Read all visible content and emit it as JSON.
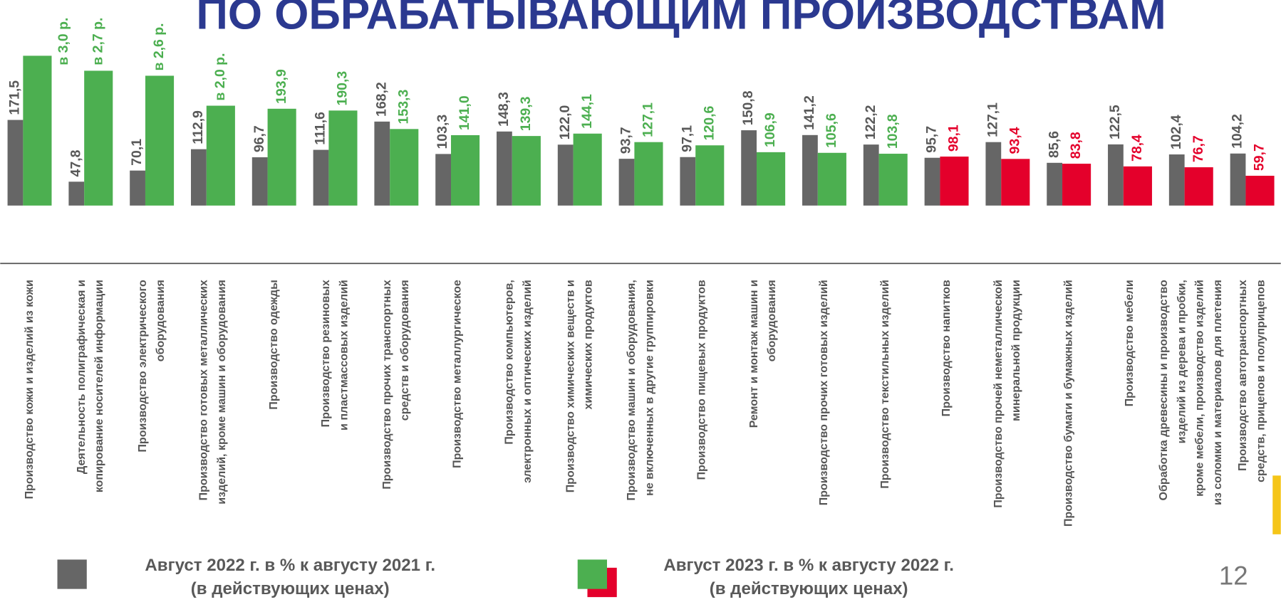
{
  "chart_data": {
    "type": "bar",
    "title": "ПО ОБРАБАТЫВАЮЩИМ ПРОИЗВОДСТВАМ",
    "page_number": "12",
    "categories": [
      [
        "Производство кожи и изделий из кожи"
      ],
      [
        "Деятельность полиграфическая и",
        "копирование носителей информации"
      ],
      [
        "Производство электрического",
        "оборудования"
      ],
      [
        "Производство готовых металлических",
        "изделий, кроме машин и оборудования"
      ],
      [
        "Производство одежды"
      ],
      [
        "Производство резиновых",
        "и пластмассовых изделий"
      ],
      [
        "Производство прочих транспортных",
        "средств и оборудования"
      ],
      [
        "Производство  металлургическое"
      ],
      [
        "Производство компьютеров,",
        "электронных и оптических изделий"
      ],
      [
        "Производство химических  веществ и",
        "химических продуктов"
      ],
      [
        "Производство машин и оборудования,",
        "не включенных в другие группировки"
      ],
      [
        "Производство пищевых продуктов"
      ],
      [
        "Ремонт и монтаж машин и",
        "оборудования"
      ],
      [
        "Производство прочих  готовых изделий"
      ],
      [
        "Производство текстильных изделий"
      ],
      [
        "Производство напитков"
      ],
      [
        "Производство прочей неметаллической",
        "минеральной продукции"
      ],
      [
        "Производство бумаги и бумажных изделий"
      ],
      [
        "Производство мебели"
      ],
      [
        "Обработка древесины и производство",
        "изделий из дерева и пробки,",
        "кроме мебели, производство изделий",
        "из соломки и материалов для плетения"
      ],
      [
        "Производство автотранспортных",
        "средств, прицепов и полуприцепов"
      ]
    ],
    "series": [
      {
        "name": [
          "Август 2022 г. в % к  августу 2021 г.",
          "(в действующих ценах)"
        ],
        "color": "#666666",
        "label_color": "#595959",
        "values": [
          171.5,
          47.8,
          70.1,
          112.9,
          96.7,
          111.6,
          168.2,
          103.3,
          148.3,
          122.0,
          93.7,
          97.1,
          150.8,
          141.2,
          122.2,
          95.7,
          127.1,
          85.6,
          122.5,
          102.4,
          104.2
        ],
        "value_labels": [
          "171,5",
          "47,8",
          "70,1",
          "112,9",
          "96,7",
          "111,6",
          "168,2",
          "103,3",
          "148,3",
          "122,0",
          "93,7",
          "97,1",
          "150,8",
          "141,2",
          "122,2",
          "95,7",
          "127,1",
          "85,6",
          "122,5",
          "102,4",
          "104,2"
        ]
      },
      {
        "name": [
          "Август 2023 г. в % к августу 2022 г.",
          "(в действующих ценах)"
        ],
        "color": "#4caf50",
        "colors": [
          "#4caf50",
          "#4caf50",
          "#4caf50",
          "#4caf50",
          "#4caf50",
          "#4caf50",
          "#4caf50",
          "#4caf50",
          "#4caf50",
          "#4caf50",
          "#4caf50",
          "#4caf50",
          "#4caf50",
          "#4caf50",
          "#4caf50",
          "#e4002b",
          "#e4002b",
          "#e4002b",
          "#e4002b",
          "#e4002b",
          "#e4002b"
        ],
        "values": [
          300,
          270,
          260,
          200,
          193.9,
          190.3,
          153.3,
          141.0,
          139.3,
          144.1,
          127.1,
          120.6,
          106.9,
          105.6,
          103.8,
          98.1,
          93.4,
          83.8,
          78.4,
          76.7,
          59.7
        ],
        "value_labels": [
          "в 3,0 р.",
          "в 2,7 р.",
          "в 2,6 р.",
          "в 2,0 р.",
          "193,9",
          "190,3",
          "153,3",
          "141,0",
          "139,3",
          "144,1",
          "127,1",
          "120,6",
          "106,9",
          "105,6",
          "103,8",
          "98,1",
          "93,4",
          "83,8",
          "78,4",
          "76,7",
          "59,7"
        ]
      }
    ],
    "ylim": [
      0,
      330
    ]
  }
}
